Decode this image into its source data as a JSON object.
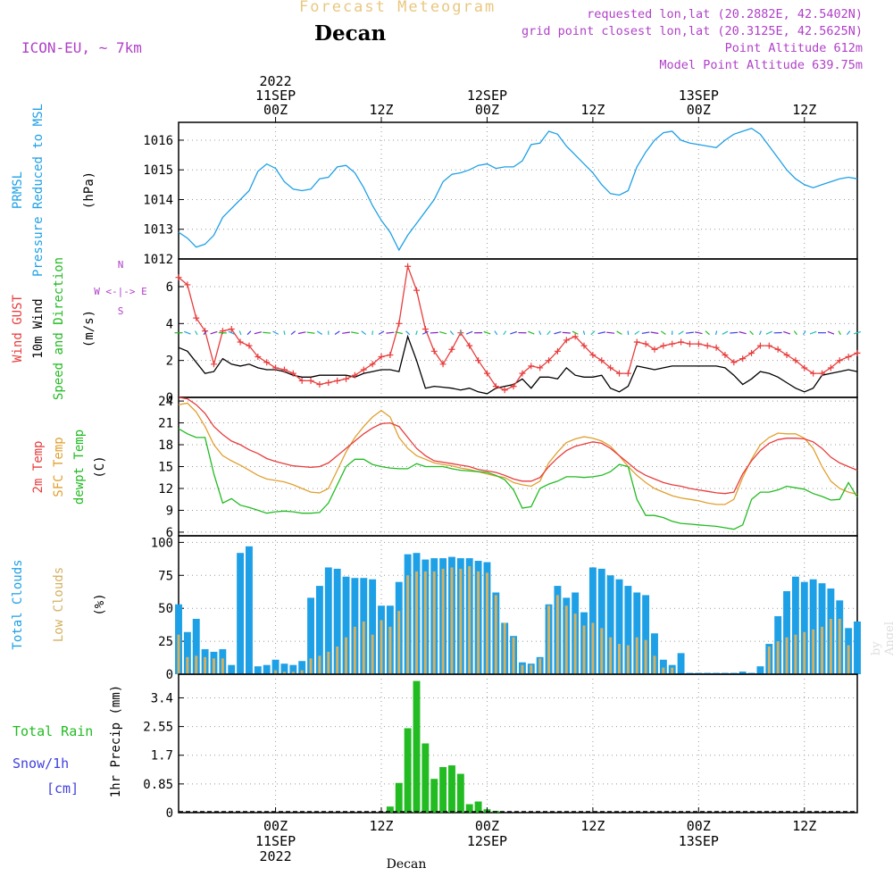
{
  "header": {
    "title": "Forecast Meteogram",
    "location": "Decan",
    "model": "ICON-EU, ~ 7km",
    "requested": "requested lon,lat (20.2882E, 42.5402N)",
    "gridpoint": "grid point closest lon,lat (20.3125E, 42.5625N)",
    "altitude": "Point Altitude 612m",
    "model_altitude": "Model Point Altitude 639.75m",
    "credit": "by Angel",
    "footer_name": "Decan"
  },
  "time_axis": {
    "top_labels": [
      {
        "t": 0,
        "lines": [
          "2022",
          "11SEP",
          "00Z"
        ]
      },
      {
        "t": 12,
        "lines": [
          "12Z"
        ]
      },
      {
        "t": 24,
        "lines": [
          "12SEP",
          "00Z"
        ]
      },
      {
        "t": 36,
        "lines": [
          "12Z"
        ]
      },
      {
        "t": 48,
        "lines": [
          "13SEP",
          "00Z"
        ]
      },
      {
        "t": 60,
        "lines": [
          "12Z"
        ]
      }
    ],
    "bottom_labels": [
      {
        "t": 0,
        "lines": [
          "00Z",
          "11SEP",
          "2022"
        ]
      },
      {
        "t": 12,
        "lines": [
          "12Z"
        ]
      },
      {
        "t": 24,
        "lines": [
          "00Z",
          "12SEP"
        ]
      },
      {
        "t": 36,
        "lines": [
          "12Z"
        ]
      },
      {
        "t": 48,
        "lines": [
          "00Z",
          "13SEP"
        ]
      },
      {
        "t": 60,
        "lines": [
          "12Z"
        ]
      }
    ],
    "t_min": -11,
    "t_max": 66
  },
  "colors": {
    "prmsl": "#1ea0e6",
    "gust": "#e83c3c",
    "wind": "#000000",
    "arrows_green": "#22bb22",
    "t2m": "#e83c3c",
    "sfc": "#e0a030",
    "dewpt": "#22bb22",
    "total_clouds": "#1ea0e6",
    "low_clouds": "#d4b060",
    "rain": "#22bb22",
    "snow": "#4040e0",
    "purple": "#b040c8"
  },
  "chart_data": [
    {
      "type": "line",
      "name": "prmsl",
      "labels": [
        "PRMSL",
        "Pressure Reduced to MSL",
        "(hPa)"
      ],
      "yticks": [
        1012,
        1013,
        1014,
        1015,
        1016
      ],
      "ylim": [
        1012,
        1016.6
      ],
      "x": [
        -11,
        -10,
        -9,
        -8,
        -7,
        -6,
        -5,
        -4,
        -3,
        -2,
        -1,
        0,
        1,
        2,
        3,
        4,
        5,
        6,
        7,
        8,
        9,
        10,
        11,
        12,
        13,
        14,
        15,
        16,
        17,
        18,
        19,
        20,
        21,
        22,
        23,
        24,
        25,
        26,
        27,
        28,
        29,
        30,
        31,
        32,
        33,
        34,
        35,
        36,
        37,
        38,
        39,
        40,
        41,
        42,
        43,
        44,
        45,
        46,
        47,
        48,
        49,
        50,
        51,
        52,
        53,
        54,
        55,
        56,
        57,
        58,
        59,
        60,
        61,
        62,
        63,
        64,
        65,
        66
      ],
      "values": [
        1012.9,
        1012.7,
        1012.4,
        1012.5,
        1012.8,
        1013.4,
        1013.7,
        1014.0,
        1014.3,
        1014.95,
        1015.2,
        1015.05,
        1014.6,
        1014.35,
        1014.3,
        1014.35,
        1014.7,
        1014.75,
        1015.1,
        1015.15,
        1014.9,
        1014.4,
        1013.8,
        1013.3,
        1012.9,
        1012.3,
        1012.8,
        1013.2,
        1013.6,
        1014.0,
        1014.6,
        1014.85,
        1014.9,
        1015.0,
        1015.15,
        1015.2,
        1015.05,
        1015.1,
        1015.1,
        1015.3,
        1015.85,
        1015.9,
        1016.3,
        1016.2,
        1015.8,
        1015.5,
        1015.2,
        1014.9,
        1014.5,
        1014.2,
        1014.15,
        1014.3,
        1015.1,
        1015.6,
        1016.0,
        1016.25,
        1016.3,
        1016.0,
        1015.9,
        1015.85,
        1015.8,
        1015.75,
        1016.0,
        1016.2,
        1016.3,
        1016.4,
        1016.2,
        1015.8,
        1015.4,
        1015.0,
        1014.7,
        1014.5,
        1014.4,
        1014.5,
        1014.6,
        1014.7,
        1014.75,
        1014.7
      ]
    },
    {
      "type": "line",
      "name": "wind",
      "labels": [
        "Wind GUST",
        "10m Wind",
        "Speed and Direction",
        "(m/s)"
      ],
      "compass": [
        "N",
        "S",
        "W <-|-> E"
      ],
      "yticks": [
        0,
        2,
        4,
        6
      ],
      "ylim": [
        0,
        7.5
      ],
      "x": [
        -11,
        -10,
        -9,
        -8,
        -7,
        -6,
        -5,
        -4,
        -3,
        -2,
        -1,
        0,
        1,
        2,
        3,
        4,
        5,
        6,
        7,
        8,
        9,
        10,
        11,
        12,
        13,
        14,
        15,
        16,
        17,
        18,
        19,
        20,
        21,
        22,
        23,
        24,
        25,
        26,
        27,
        28,
        29,
        30,
        31,
        32,
        33,
        34,
        35,
        36,
        37,
        38,
        39,
        40,
        41,
        42,
        43,
        44,
        45,
        46,
        47,
        48,
        49,
        50,
        51,
        52,
        53,
        54,
        55,
        56,
        57,
        58,
        59,
        60,
        61,
        62,
        63,
        64,
        65,
        66
      ],
      "gust": [
        6.5,
        6.1,
        4.3,
        3.6,
        1.8,
        3.6,
        3.7,
        3.0,
        2.8,
        2.2,
        1.9,
        1.6,
        1.5,
        1.3,
        0.9,
        0.9,
        0.7,
        0.8,
        0.9,
        1.0,
        1.2,
        1.5,
        1.8,
        2.2,
        2.3,
        4.0,
        7.1,
        5.8,
        3.7,
        2.5,
        1.8,
        2.6,
        3.5,
        2.8,
        2.0,
        1.3,
        0.6,
        0.4,
        0.6,
        1.3,
        1.7,
        1.6,
        2.0,
        2.5,
        3.1,
        3.3,
        2.8,
        2.3,
        2.0,
        1.6,
        1.3,
        1.3,
        3.0,
        2.9,
        2.6,
        2.8,
        2.9,
        3.0,
        2.9,
        2.9,
        2.8,
        2.7,
        2.3,
        1.9,
        2.1,
        2.4,
        2.8,
        2.8,
        2.6,
        2.3,
        2.0,
        1.6,
        1.3,
        1.3,
        1.6,
        2.0,
        2.2,
        2.4
      ],
      "wind": [
        2.7,
        2.5,
        1.9,
        1.3,
        1.4,
        2.1,
        1.8,
        1.7,
        1.8,
        1.6,
        1.5,
        1.5,
        1.4,
        1.2,
        1.1,
        1.1,
        1.2,
        1.2,
        1.2,
        1.2,
        1.1,
        1.3,
        1.4,
        1.5,
        1.5,
        1.4,
        3.3,
        2.0,
        0.5,
        0.6,
        0.55,
        0.5,
        0.4,
        0.5,
        0.3,
        0.2,
        0.5,
        0.6,
        0.7,
        1.0,
        0.5,
        1.1,
        1.1,
        1.0,
        1.6,
        1.2,
        1.1,
        1.1,
        1.2,
        0.5,
        0.3,
        0.6,
        1.7,
        1.6,
        1.5,
        1.6,
        1.7,
        1.7,
        1.7,
        1.7,
        1.7,
        1.7,
        1.6,
        1.2,
        0.7,
        1.0,
        1.4,
        1.3,
        1.1,
        0.8,
        0.5,
        0.3,
        0.5,
        1.2,
        1.3,
        1.4,
        1.5,
        1.4
      ]
    },
    {
      "type": "line",
      "name": "temperature",
      "labels": [
        "2m Temp",
        "SFC Temp",
        "dewpt Temp",
        "(C)"
      ],
      "yticks": [
        6,
        9,
        12,
        15,
        18,
        21,
        24
      ],
      "ylim": [
        5.5,
        24.5
      ],
      "x": [
        -11,
        -10,
        -9,
        -8,
        -7,
        -6,
        -5,
        -4,
        -3,
        -2,
        -1,
        0,
        1,
        2,
        3,
        4,
        5,
        6,
        7,
        8,
        9,
        10,
        11,
        12,
        13,
        14,
        15,
        16,
        17,
        18,
        19,
        20,
        21,
        22,
        23,
        24,
        25,
        26,
        27,
        28,
        29,
        30,
        31,
        32,
        33,
        34,
        35,
        36,
        37,
        38,
        39,
        40,
        41,
        42,
        43,
        44,
        45,
        46,
        47,
        48,
        49,
        50,
        51,
        52,
        53,
        54,
        55,
        56,
        57,
        58,
        59,
        60,
        61,
        62,
        63,
        64,
        65,
        66
      ],
      "t2m": [
        24.5,
        24.3,
        23.5,
        22.3,
        20.5,
        19.4,
        18.5,
        18.0,
        17.3,
        16.8,
        16.1,
        15.7,
        15.4,
        15.1,
        15.0,
        14.9,
        15.0,
        15.5,
        16.5,
        17.5,
        18.5,
        19.5,
        20.3,
        20.9,
        21.0,
        20.5,
        19.0,
        17.5,
        16.5,
        15.8,
        15.6,
        15.4,
        15.2,
        15.0,
        14.6,
        14.4,
        14.2,
        13.8,
        13.3,
        13.0,
        13.0,
        13.5,
        15.0,
        16.2,
        17.2,
        17.8,
        18.1,
        18.4,
        18.2,
        17.5,
        16.5,
        15.5,
        14.5,
        13.8,
        13.3,
        12.8,
        12.5,
        12.3,
        12.0,
        11.8,
        11.6,
        11.4,
        11.3,
        11.5,
        14.0,
        15.8,
        17.2,
        18.2,
        18.7,
        18.9,
        18.9,
        18.8,
        18.4,
        17.5,
        16.3,
        15.5,
        15.0,
        14.5
      ],
      "sfc": [
        23.5,
        23.7,
        22.5,
        20.5,
        18.0,
        16.5,
        15.8,
        15.2,
        14.5,
        13.8,
        13.3,
        13.1,
        12.9,
        12.5,
        12.0,
        11.5,
        11.4,
        12.0,
        14.5,
        17.0,
        19.0,
        20.5,
        21.8,
        22.7,
        21.8,
        19.0,
        17.5,
        16.5,
        16.0,
        15.5,
        15.3,
        15.1,
        14.8,
        14.6,
        14.3,
        14.0,
        13.7,
        13.5,
        12.8,
        12.5,
        12.3,
        13.0,
        15.5,
        17.0,
        18.3,
        18.8,
        19.1,
        18.9,
        18.5,
        17.8,
        16.5,
        15.0,
        13.8,
        12.8,
        12.0,
        11.5,
        11.0,
        10.7,
        10.5,
        10.3,
        10.0,
        9.8,
        9.8,
        10.5,
        13.5,
        16.0,
        18.0,
        19.0,
        19.6,
        19.5,
        19.5,
        18.9,
        17.5,
        15.0,
        13.0,
        12.0,
        11.5,
        11.2
      ],
      "dewpt": [
        20.2,
        19.5,
        19.0,
        19.0,
        14.0,
        10.0,
        10.6,
        9.7,
        9.4,
        9.0,
        8.6,
        8.8,
        8.9,
        8.8,
        8.6,
        8.6,
        8.7,
        10.0,
        12.5,
        15.0,
        16.0,
        16.0,
        15.3,
        15.0,
        14.8,
        14.7,
        14.7,
        15.4,
        15.0,
        15.0,
        15.0,
        14.7,
        14.5,
        14.4,
        14.3,
        14.2,
        13.8,
        13.2,
        11.8,
        9.3,
        9.5,
        12.0,
        12.6,
        13.0,
        13.6,
        13.6,
        13.5,
        13.6,
        13.8,
        14.3,
        15.3,
        15.0,
        10.5,
        8.3,
        8.3,
        8.0,
        7.5,
        7.2,
        7.1,
        7.0,
        6.9,
        6.8,
        6.6,
        6.4,
        7.0,
        10.5,
        11.5,
        11.5,
        11.8,
        12.3,
        12.1,
        11.9,
        11.3,
        10.9,
        10.4,
        10.5,
        12.8,
        10.8
      ]
    },
    {
      "type": "bar",
      "name": "clouds",
      "labels": [
        "Total Clouds",
        "Low Clouds",
        "(%)"
      ],
      "yticks": [
        0,
        25,
        50,
        75,
        100
      ],
      "ylim": [
        0,
        105
      ],
      "x": [
        -11,
        -10,
        -9,
        -8,
        -7,
        -6,
        -5,
        -4,
        -3,
        -2,
        -1,
        0,
        1,
        2,
        3,
        4,
        5,
        6,
        7,
        8,
        9,
        10,
        11,
        12,
        13,
        14,
        15,
        16,
        17,
        18,
        19,
        20,
        21,
        22,
        23,
        24,
        25,
        26,
        27,
        28,
        29,
        30,
        31,
        32,
        33,
        34,
        35,
        36,
        37,
        38,
        39,
        40,
        41,
        42,
        43,
        44,
        45,
        46,
        47,
        48,
        49,
        50,
        51,
        52,
        53,
        54,
        55,
        56,
        57,
        58,
        59,
        60,
        61,
        62,
        63,
        64,
        65,
        66
      ],
      "total": [
        53,
        32,
        42,
        19,
        17,
        19,
        7,
        92,
        97,
        6,
        7,
        11,
        8,
        7,
        10,
        58,
        67,
        81,
        80,
        74,
        73,
        73,
        72,
        52,
        52,
        70,
        91,
        92,
        87,
        88,
        88,
        89,
        88,
        88,
        86,
        85,
        62,
        39,
        29,
        9,
        8,
        13,
        53,
        67,
        58,
        62,
        47,
        81,
        80,
        75,
        72,
        67,
        62,
        60,
        31,
        11,
        7,
        16,
        1,
        1,
        1,
        1,
        1,
        1,
        2,
        1,
        6,
        23,
        44,
        63,
        74,
        70,
        72,
        69,
        65,
        56,
        35,
        40
      ],
      "low": [
        30,
        13,
        14,
        13,
        12,
        12,
        0,
        0,
        0,
        0,
        0,
        3,
        2,
        2,
        3,
        12,
        14,
        17,
        21,
        28,
        36,
        40,
        30,
        41,
        36,
        48,
        75,
        78,
        78,
        78,
        80,
        81,
        80,
        82,
        78,
        77,
        60,
        39,
        28,
        7,
        7,
        12,
        52,
        60,
        52,
        46,
        37,
        39,
        35,
        28,
        23,
        22,
        28,
        26,
        14,
        5,
        5,
        0,
        0,
        0,
        0,
        0,
        0,
        0,
        0,
        0,
        0,
        21,
        25,
        28,
        30,
        32,
        34,
        36,
        42,
        42,
        22,
        0
      ]
    },
    {
      "type": "bar",
      "name": "precip",
      "labels": [
        "Total  Rain",
        "Snow/1h",
        "[cm]",
        "1hr Precip (mm)"
      ],
      "yticks": [
        0,
        0.85,
        1.7,
        2.55,
        3.4
      ],
      "ytick_labels": [
        "0",
        "0.85",
        "1.7",
        "2.55",
        "3.4"
      ],
      "ylim": [
        0,
        4.1
      ],
      "x": [
        13,
        14,
        15,
        16,
        17,
        18,
        19,
        20,
        21,
        22,
        23,
        24,
        25
      ],
      "rain": [
        0.18,
        0.88,
        2.5,
        3.9,
        2.05,
        1.0,
        1.35,
        1.4,
        1.15,
        0.25,
        0.33,
        0.1,
        0.05
      ],
      "snow": []
    }
  ]
}
